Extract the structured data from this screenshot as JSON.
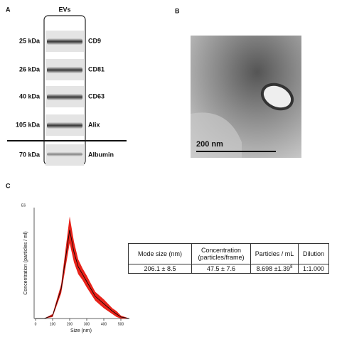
{
  "panel_a": {
    "label": "A",
    "column_title": "EVs",
    "rows": [
      {
        "weight": "25 kDa",
        "marker": "CD9"
      },
      {
        "weight": "26 kDa",
        "marker": "CD81"
      },
      {
        "weight": "40 kDa",
        "marker": "CD63"
      },
      {
        "weight": "105 kDa",
        "marker": "Alix"
      },
      {
        "weight": "70 kDa",
        "marker": "Albumin"
      }
    ]
  },
  "panel_b": {
    "label": "B",
    "scale_bar": "200 nm"
  },
  "panel_c": {
    "label": "C",
    "table": {
      "header": [
        "Mode size (nm)",
        "Concentration (particles/frame)",
        "Particles / mL",
        "Dilution"
      ],
      "row": [
        "206.1 ± 8.5",
        "47.5 ± 7.6",
        "8.698 ±1.39",
        "1:1.000"
      ],
      "superscript": "8"
    }
  },
  "chart_data": {
    "type": "line",
    "y_axis_label": "Concentration (particles / ml)",
    "y_axis_scale": "E6",
    "x_axis_label": "Size (nm)",
    "x": [
      0,
      50,
      100,
      150,
      175,
      200,
      225,
      250,
      275,
      300,
      350,
      400,
      450,
      475,
      500,
      550
    ],
    "series": [
      {
        "color": "#000000",
        "band_color": "#e8231a",
        "values": [
          0,
          0,
          0.2,
          2,
          4,
          6,
          4.5,
          3.5,
          3,
          2.5,
          1.5,
          1,
          0.5,
          0.3,
          0.1,
          0
        ],
        "error": [
          0,
          0,
          0.1,
          0.3,
          0.6,
          0.9,
          0.7,
          0.5,
          0.4,
          0.4,
          0.3,
          0.3,
          0.2,
          0.2,
          0.1,
          0
        ]
      }
    ],
    "xlim": [
      0,
      550
    ],
    "xticks": [
      0,
      100,
      200,
      300,
      400,
      500
    ],
    "ylim": [
      0,
      7.5
    ]
  }
}
